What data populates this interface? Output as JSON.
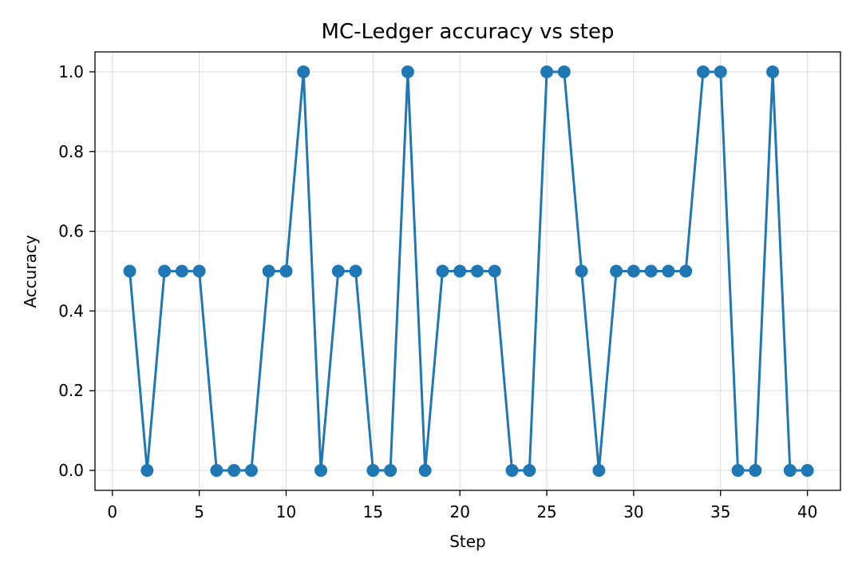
{
  "chart_data": {
    "type": "line",
    "title": "MC-Ledger accuracy vs step",
    "xlabel": "Step",
    "ylabel": "Accuracy",
    "xlim": [
      -1,
      41.9
    ],
    "ylim": [
      -0.05,
      1.05
    ],
    "xticks": [
      0,
      5,
      10,
      15,
      20,
      25,
      30,
      35,
      40
    ],
    "yticks": [
      0.0,
      0.2,
      0.4,
      0.6,
      0.8,
      1.0
    ],
    "ytick_labels": [
      "0.0",
      "0.2",
      "0.4",
      "0.6",
      "0.8",
      "1.0"
    ],
    "grid": true,
    "color": "#1f77b4",
    "marker": "circle",
    "x": [
      1,
      2,
      3,
      4,
      5,
      6,
      7,
      8,
      9,
      10,
      11,
      12,
      13,
      14,
      15,
      16,
      17,
      18,
      19,
      20,
      21,
      22,
      23,
      24,
      25,
      26,
      27,
      28,
      29,
      30,
      31,
      32,
      33,
      34,
      35,
      36,
      37,
      38,
      39,
      40
    ],
    "y": [
      0.5,
      0,
      0.5,
      0.5,
      0.5,
      0,
      0,
      0,
      0.5,
      0.5,
      1,
      0,
      0.5,
      0.5,
      0,
      0,
      1,
      0,
      0.5,
      0.5,
      0.5,
      0.5,
      0,
      0,
      1,
      1,
      0.5,
      0,
      0.5,
      0.5,
      0.5,
      0.5,
      0.5,
      1,
      1,
      0,
      0,
      1,
      0,
      0
    ]
  }
}
